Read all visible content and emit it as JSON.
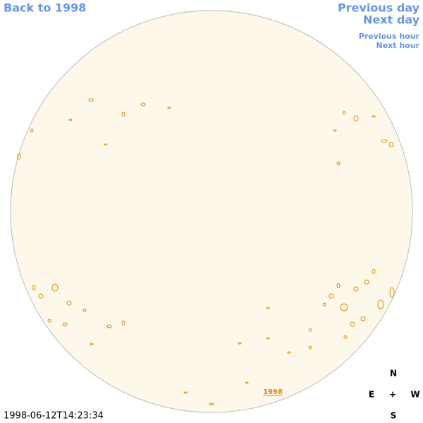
{
  "nav": {
    "back": "Back to 1998",
    "previous_day": "Previous day",
    "next_day": "Next day",
    "previous_hour": "Previous hour",
    "next_hour": "Next hour"
  },
  "timestamp": "1998-06-12T14:23:34",
  "compass": {
    "north": "N",
    "east": "E",
    "center": "+",
    "west": "W",
    "south": "S"
  },
  "disk_label": "1998"
}
